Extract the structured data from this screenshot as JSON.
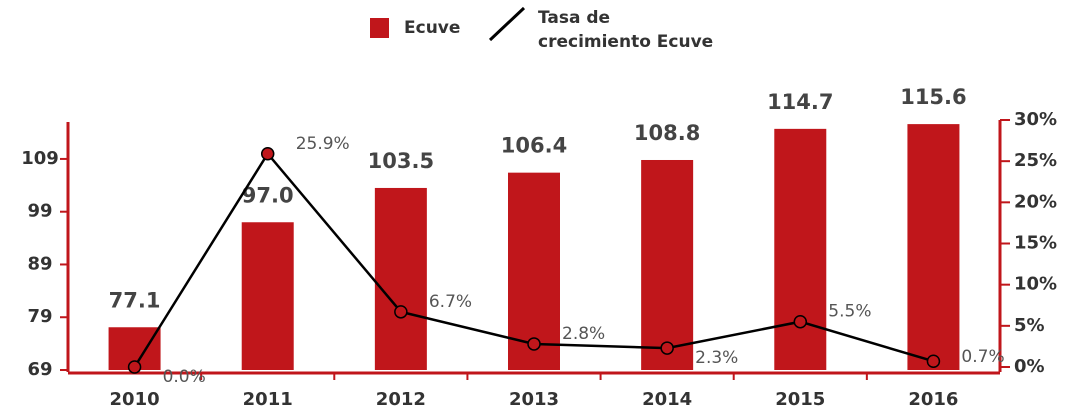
{
  "chart_data": {
    "type": "bar",
    "categories": [
      "2010",
      "2011",
      "2012",
      "2013",
      "2014",
      "2015",
      "2016"
    ],
    "series": [
      {
        "name": "Ecuve",
        "color": "#c0161b",
        "values": [
          77.1,
          97.0,
          103.5,
          106.4,
          108.8,
          114.7,
          115.6
        ],
        "value_labels": [
          "77.1",
          "97.0",
          "103.5",
          "106.4",
          "108.8",
          "114.7",
          "115.6"
        ]
      },
      {
        "name": "Tasa de crecimiento Ecuve",
        "type": "line",
        "axis": "y2",
        "color": "#000000",
        "marker_color": "#c0161b",
        "values": [
          0.0,
          25.9,
          6.7,
          2.8,
          2.3,
          5.5,
          0.7
        ],
        "value_labels": [
          "0.0%",
          "25.9%",
          "6.7%",
          "2.8%",
          "2.3%",
          "5.5%",
          "0.7%"
        ]
      }
    ],
    "ylim": [
      69,
      116
    ],
    "yticks": [
      69,
      79,
      89,
      99,
      109
    ],
    "y2lim": [
      0,
      30
    ],
    "y2ticks": [
      {
        "value": 0,
        "label": "0%"
      },
      {
        "value": 5,
        "label": "5%"
      },
      {
        "value": 10,
        "label": "10%"
      },
      {
        "value": 15,
        "label": "15%"
      },
      {
        "value": 20,
        "label": "20%"
      },
      {
        "value": 25,
        "label": "25%"
      },
      {
        "value": 30,
        "label": "30%"
      }
    ],
    "axis_color": "#c0161b",
    "legend": "top"
  }
}
